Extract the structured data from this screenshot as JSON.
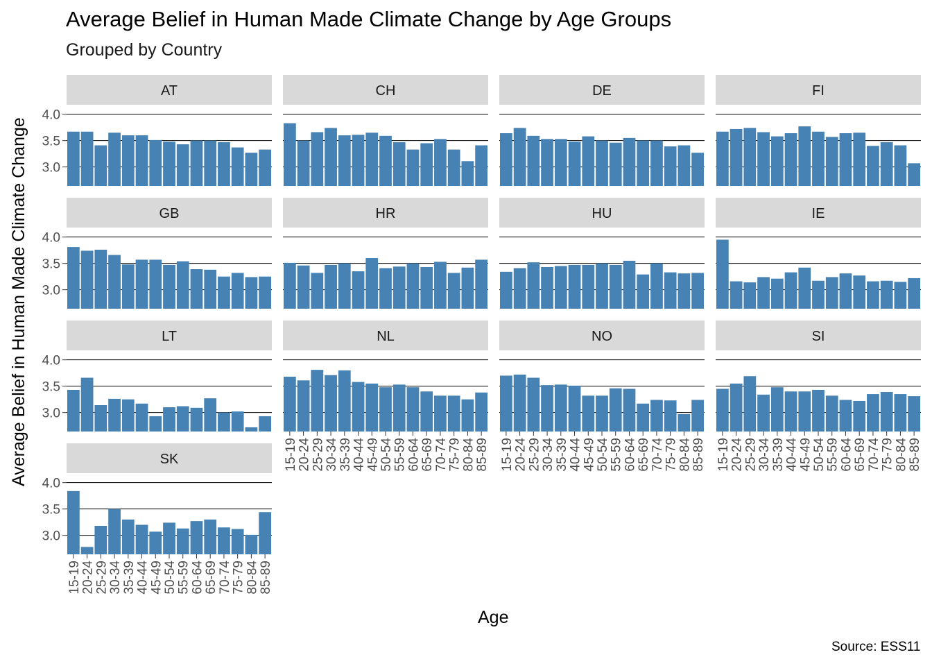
{
  "title": "Average Belief in Human Made Climate Change by Age Groups",
  "subtitle": "Grouped by Country",
  "caption": "Source: ESS11",
  "chart_data": {
    "type": "bar",
    "facet_by": "Country",
    "xlabel": "Age",
    "ylabel": "Average Belief in Human Made Climate Change",
    "categories": [
      "15-19",
      "20-24",
      "25-29",
      "30-34",
      "35-39",
      "40-44",
      "45-49",
      "50-54",
      "55-59",
      "60-64",
      "65-69",
      "70-74",
      "75-79",
      "80-84",
      "85-89"
    ],
    "yticks": [
      "3.0",
      "3.5",
      "4.0"
    ],
    "ylim": [
      2.64,
      4.18
    ],
    "bar_color": "#4682B4",
    "strip_color": "#D9D9D9",
    "gridline_color": "#000000",
    "series": [
      {
        "name": "AT",
        "values": [
          3.67,
          3.67,
          3.41,
          3.65,
          3.6,
          3.6,
          3.51,
          3.48,
          3.43,
          3.5,
          3.5,
          3.47,
          3.37,
          3.27,
          3.33
        ]
      },
      {
        "name": "CH",
        "values": [
          3.83,
          3.5,
          3.66,
          3.74,
          3.6,
          3.61,
          3.65,
          3.59,
          3.47,
          3.33,
          3.45,
          3.53,
          3.33,
          3.11,
          3.41
        ]
      },
      {
        "name": "DE",
        "values": [
          3.64,
          3.74,
          3.59,
          3.53,
          3.53,
          3.48,
          3.58,
          3.5,
          3.46,
          3.55,
          3.5,
          3.5,
          3.39,
          3.41,
          3.27
        ]
      },
      {
        "name": "FI",
        "values": [
          3.67,
          3.72,
          3.74,
          3.66,
          3.58,
          3.64,
          3.77,
          3.67,
          3.57,
          3.64,
          3.65,
          3.4,
          3.47,
          3.41,
          3.07
        ]
      },
      {
        "name": "GB",
        "values": [
          3.81,
          3.74,
          3.76,
          3.66,
          3.48,
          3.57,
          3.57,
          3.47,
          3.54,
          3.39,
          3.38,
          3.25,
          3.32,
          3.24,
          3.25
        ]
      },
      {
        "name": "HR",
        "values": [
          3.51,
          3.46,
          3.32,
          3.47,
          3.5,
          3.35,
          3.6,
          3.41,
          3.44,
          3.5,
          3.43,
          3.53,
          3.32,
          3.42,
          3.57
        ]
      },
      {
        "name": "HU",
        "values": [
          3.34,
          3.41,
          3.52,
          3.43,
          3.45,
          3.47,
          3.47,
          3.5,
          3.47,
          3.55,
          3.29,
          3.5,
          3.33,
          3.31,
          3.32
        ]
      },
      {
        "name": "IE",
        "values": [
          3.95,
          3.16,
          3.14,
          3.24,
          3.21,
          3.33,
          3.42,
          3.17,
          3.24,
          3.31,
          3.27,
          3.16,
          3.17,
          3.15,
          3.22
        ]
      },
      {
        "name": "LT",
        "values": [
          3.43,
          3.66,
          3.14,
          3.26,
          3.25,
          3.17,
          2.93,
          3.1,
          3.12,
          3.09,
          3.27,
          3.0,
          3.02,
          2.72,
          2.93
        ]
      },
      {
        "name": "NL",
        "values": [
          3.68,
          3.61,
          3.81,
          3.71,
          3.8,
          3.58,
          3.55,
          3.48,
          3.53,
          3.48,
          3.4,
          3.32,
          3.32,
          3.25,
          3.38
        ]
      },
      {
        "name": "NO",
        "values": [
          3.7,
          3.72,
          3.66,
          3.52,
          3.53,
          3.51,
          3.32,
          3.32,
          3.46,
          3.45,
          3.17,
          3.24,
          3.23,
          2.97,
          3.24
        ]
      },
      {
        "name": "SI",
        "values": [
          3.45,
          3.55,
          3.69,
          3.34,
          3.48,
          3.4,
          3.4,
          3.43,
          3.32,
          3.24,
          3.22,
          3.35,
          3.39,
          3.35,
          3.31
        ]
      },
      {
        "name": "SK",
        "values": [
          3.84,
          2.78,
          3.18,
          3.5,
          3.3,
          3.2,
          3.07,
          3.24,
          3.13,
          3.27,
          3.3,
          3.15,
          3.12,
          3.01,
          3.44
        ]
      }
    ]
  }
}
